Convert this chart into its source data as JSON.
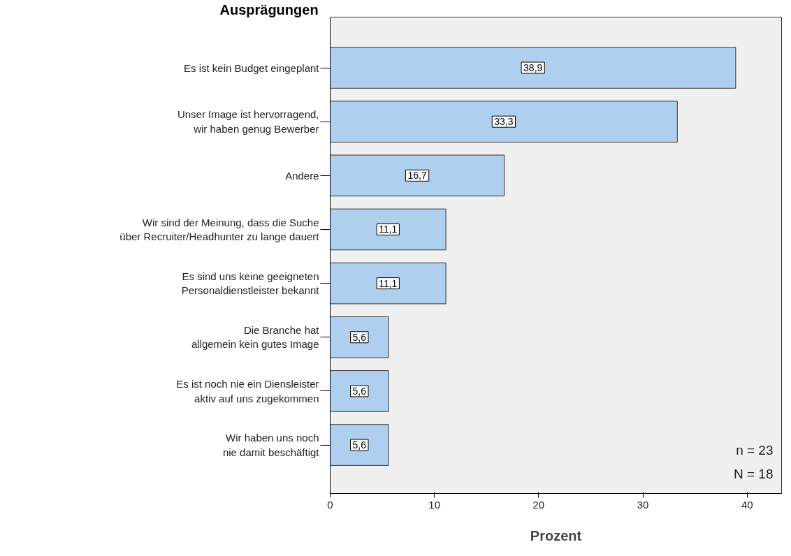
{
  "chart_data": {
    "type": "bar",
    "orientation": "horizontal",
    "ylabel": "Ausprägungen",
    "xlabel": "Prozent",
    "categories": [
      "Es ist kein Budget eingeplant",
      "Unser Image ist hervorragend,\nwir haben genug Bewerber",
      "Andere",
      "Wir sind der Meinung, dass die Suche\nüber Recruiter/Headhunter zu lange dauert",
      "Es sind uns keine geeigneten\nPersonaldienstleister bekannt",
      "Die Branche hat\nallgemein kein gutes Image",
      "Es ist noch nie ein Diensleister\naktiv auf uns zugekommen",
      "Wir haben uns noch\nnie damit beschäftigt"
    ],
    "values": [
      38.9,
      33.3,
      16.7,
      11.1,
      11.1,
      5.6,
      5.6,
      5.6
    ],
    "value_labels": [
      "38,9",
      "33,3",
      "16,7",
      "11,1",
      "11,1",
      "5,6",
      "5,6",
      "5,6"
    ],
    "color": "#aed0ee",
    "xlim": [
      0,
      43.3
    ],
    "xticks": [
      0,
      10,
      20,
      30,
      40
    ],
    "grid": false,
    "legend": false,
    "annotations": [
      "n = 23",
      "N = 18"
    ]
  }
}
